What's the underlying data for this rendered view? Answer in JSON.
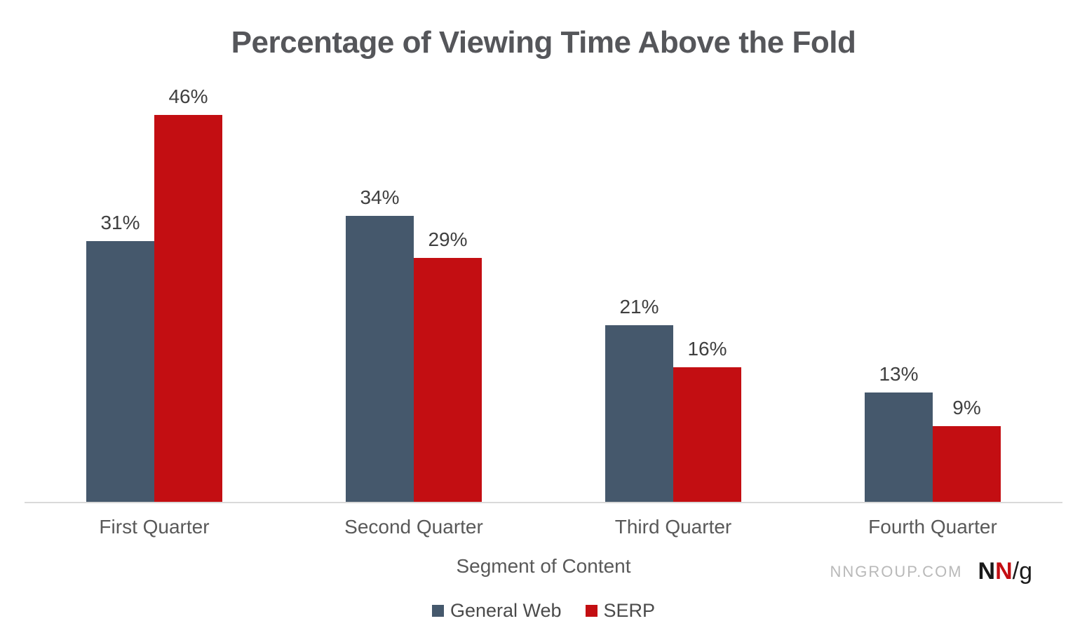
{
  "chart_data": {
    "type": "bar",
    "title": "Percentage of Viewing Time Above the Fold",
    "categories": [
      "First Quarter",
      "Second Quarter",
      "Third Quarter",
      "Fourth Quarter"
    ],
    "series": [
      {
        "name": "General Web",
        "color": "#45586c",
        "values": [
          31,
          34,
          21,
          13
        ]
      },
      {
        "name": "SERP",
        "color": "#c30e12",
        "values": [
          46,
          29,
          16,
          9
        ]
      }
    ],
    "value_label_format": "{value}%",
    "xlabel": "Segment of Content",
    "ylabel": "",
    "ylim": [
      0,
      50
    ],
    "grid": false,
    "legend_position": "bottom",
    "axis_line_color": "#d9d9d9"
  },
  "footer": {
    "source": "NNGROUP.COM",
    "logo": {
      "n_black": "N",
      "n_red": "N",
      "slash_g": "/g",
      "red_color": "#c30e12"
    }
  }
}
